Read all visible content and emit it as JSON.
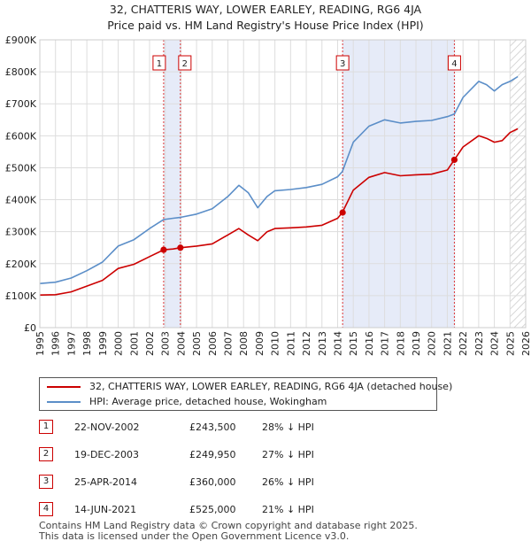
{
  "title_line1": "32, CHATTERIS WAY, LOWER EARLEY, READING, RG6 4JA",
  "title_line2": "Price paid vs. HM Land Registry's House Price Index (HPI)",
  "chart_data": {
    "type": "line",
    "ylim": [
      0,
      900000
    ],
    "xlim": [
      1995,
      2026
    ],
    "y_ticks": [
      {
        "value": 0,
        "label": "£0"
      },
      {
        "value": 100000,
        "label": "£100K"
      },
      {
        "value": 200000,
        "label": "£200K"
      },
      {
        "value": 300000,
        "label": "£300K"
      },
      {
        "value": 400000,
        "label": "£400K"
      },
      {
        "value": 500000,
        "label": "£500K"
      },
      {
        "value": 600000,
        "label": "£600K"
      },
      {
        "value": 700000,
        "label": "£700K"
      },
      {
        "value": 800000,
        "label": "£800K"
      },
      {
        "value": 900000,
        "label": "£900K"
      }
    ],
    "x_ticks": [
      "1995",
      "1996",
      "1997",
      "1998",
      "1999",
      "2000",
      "2001",
      "2002",
      "2003",
      "2004",
      "2005",
      "2006",
      "2007",
      "2008",
      "2009",
      "2010",
      "2011",
      "2012",
      "2013",
      "2014",
      "2015",
      "2016",
      "2017",
      "2018",
      "2019",
      "2020",
      "2021",
      "2022",
      "2023",
      "2024",
      "2025",
      "2026"
    ],
    "grid": true,
    "shaded_periods": [
      [
        2002.9,
        2004.0
      ],
      [
        2014.3,
        2021.5
      ]
    ],
    "hatch_from": 2025.0,
    "series": [
      {
        "name": "32, CHATTERIS WAY, LOWER EARLEY, READING, RG6 4JA (detached house)",
        "color": "#cc0000",
        "x": [
          1995.0,
          1996.0,
          1997.0,
          1998.0,
          1999.0,
          2000.0,
          2001.0,
          2002.0,
          2002.9,
          2003.5,
          2004.0,
          2005.0,
          2006.0,
          2007.0,
          2007.7,
          2008.3,
          2008.9,
          2009.5,
          2010.0,
          2011.0,
          2012.0,
          2013.0,
          2014.0,
          2014.3,
          2015.0,
          2016.0,
          2017.0,
          2018.0,
          2019.0,
          2020.0,
          2021.0,
          2021.45,
          2022.0,
          2023.0,
          2023.5,
          2024.0,
          2024.5,
          2025.0,
          2025.5
        ],
        "y": [
          102000,
          103000,
          112000,
          130000,
          148000,
          185000,
          198000,
          222000,
          243500,
          246000,
          249950,
          255000,
          262000,
          290000,
          310000,
          290000,
          272000,
          300000,
          310000,
          312000,
          315000,
          320000,
          342000,
          360000,
          430000,
          470000,
          485000,
          475000,
          478000,
          480000,
          493000,
          525000,
          565000,
          600000,
          592000,
          580000,
          585000,
          610000,
          622000
        ]
      },
      {
        "name": "HPI: Average price, detached house, Wokingham",
        "color": "#5b8ec8",
        "x": [
          1995.0,
          1996.0,
          1997.0,
          1998.0,
          1999.0,
          2000.0,
          2001.0,
          2002.0,
          2002.9,
          2003.5,
          2004.0,
          2005.0,
          2006.0,
          2007.0,
          2007.7,
          2008.3,
          2008.9,
          2009.5,
          2010.0,
          2011.0,
          2012.0,
          2013.0,
          2014.0,
          2014.3,
          2015.0,
          2016.0,
          2017.0,
          2018.0,
          2019.0,
          2020.0,
          2021.0,
          2021.45,
          2022.0,
          2023.0,
          2023.5,
          2024.0,
          2024.5,
          2025.0,
          2025.5
        ],
        "y": [
          138000,
          142000,
          155000,
          178000,
          205000,
          255000,
          275000,
          310000,
          338000,
          342000,
          345000,
          355000,
          372000,
          410000,
          445000,
          422000,
          375000,
          410000,
          428000,
          432000,
          438000,
          448000,
          472000,
          488000,
          580000,
          630000,
          650000,
          640000,
          645000,
          648000,
          660000,
          668000,
          720000,
          770000,
          760000,
          740000,
          760000,
          770000,
          785000
        ]
      }
    ],
    "sales": [
      {
        "id": "1",
        "x": 2002.9,
        "y": 243500
      },
      {
        "id": "2",
        "x": 2003.97,
        "y": 249950
      },
      {
        "id": "3",
        "x": 2014.32,
        "y": 360000
      },
      {
        "id": "4",
        "x": 2021.45,
        "y": 525000
      }
    ]
  },
  "legend": {
    "property_label": "32, CHATTERIS WAY, LOWER EARLEY, READING, RG6 4JA (detached house)",
    "hpi_label": "HPI: Average price, detached house, Wokingham",
    "property_color": "#cc0000",
    "hpi_color": "#5b8ec8"
  },
  "sales_table": [
    {
      "num": "1",
      "date": "22-NOV-2002",
      "price": "£243,500",
      "hpi": "28% ↓ HPI"
    },
    {
      "num": "2",
      "date": "19-DEC-2003",
      "price": "£249,950",
      "hpi": "27% ↓ HPI"
    },
    {
      "num": "3",
      "date": "25-APR-2014",
      "price": "£360,000",
      "hpi": "26% ↓ HPI"
    },
    {
      "num": "4",
      "date": "14-JUN-2021",
      "price": "£525,000",
      "hpi": "21% ↓ HPI"
    }
  ],
  "footer_line1": "Contains HM Land Registry data © Crown copyright and database right 2025.",
  "footer_line2": "This data is licensed under the Open Government Licence v3.0."
}
